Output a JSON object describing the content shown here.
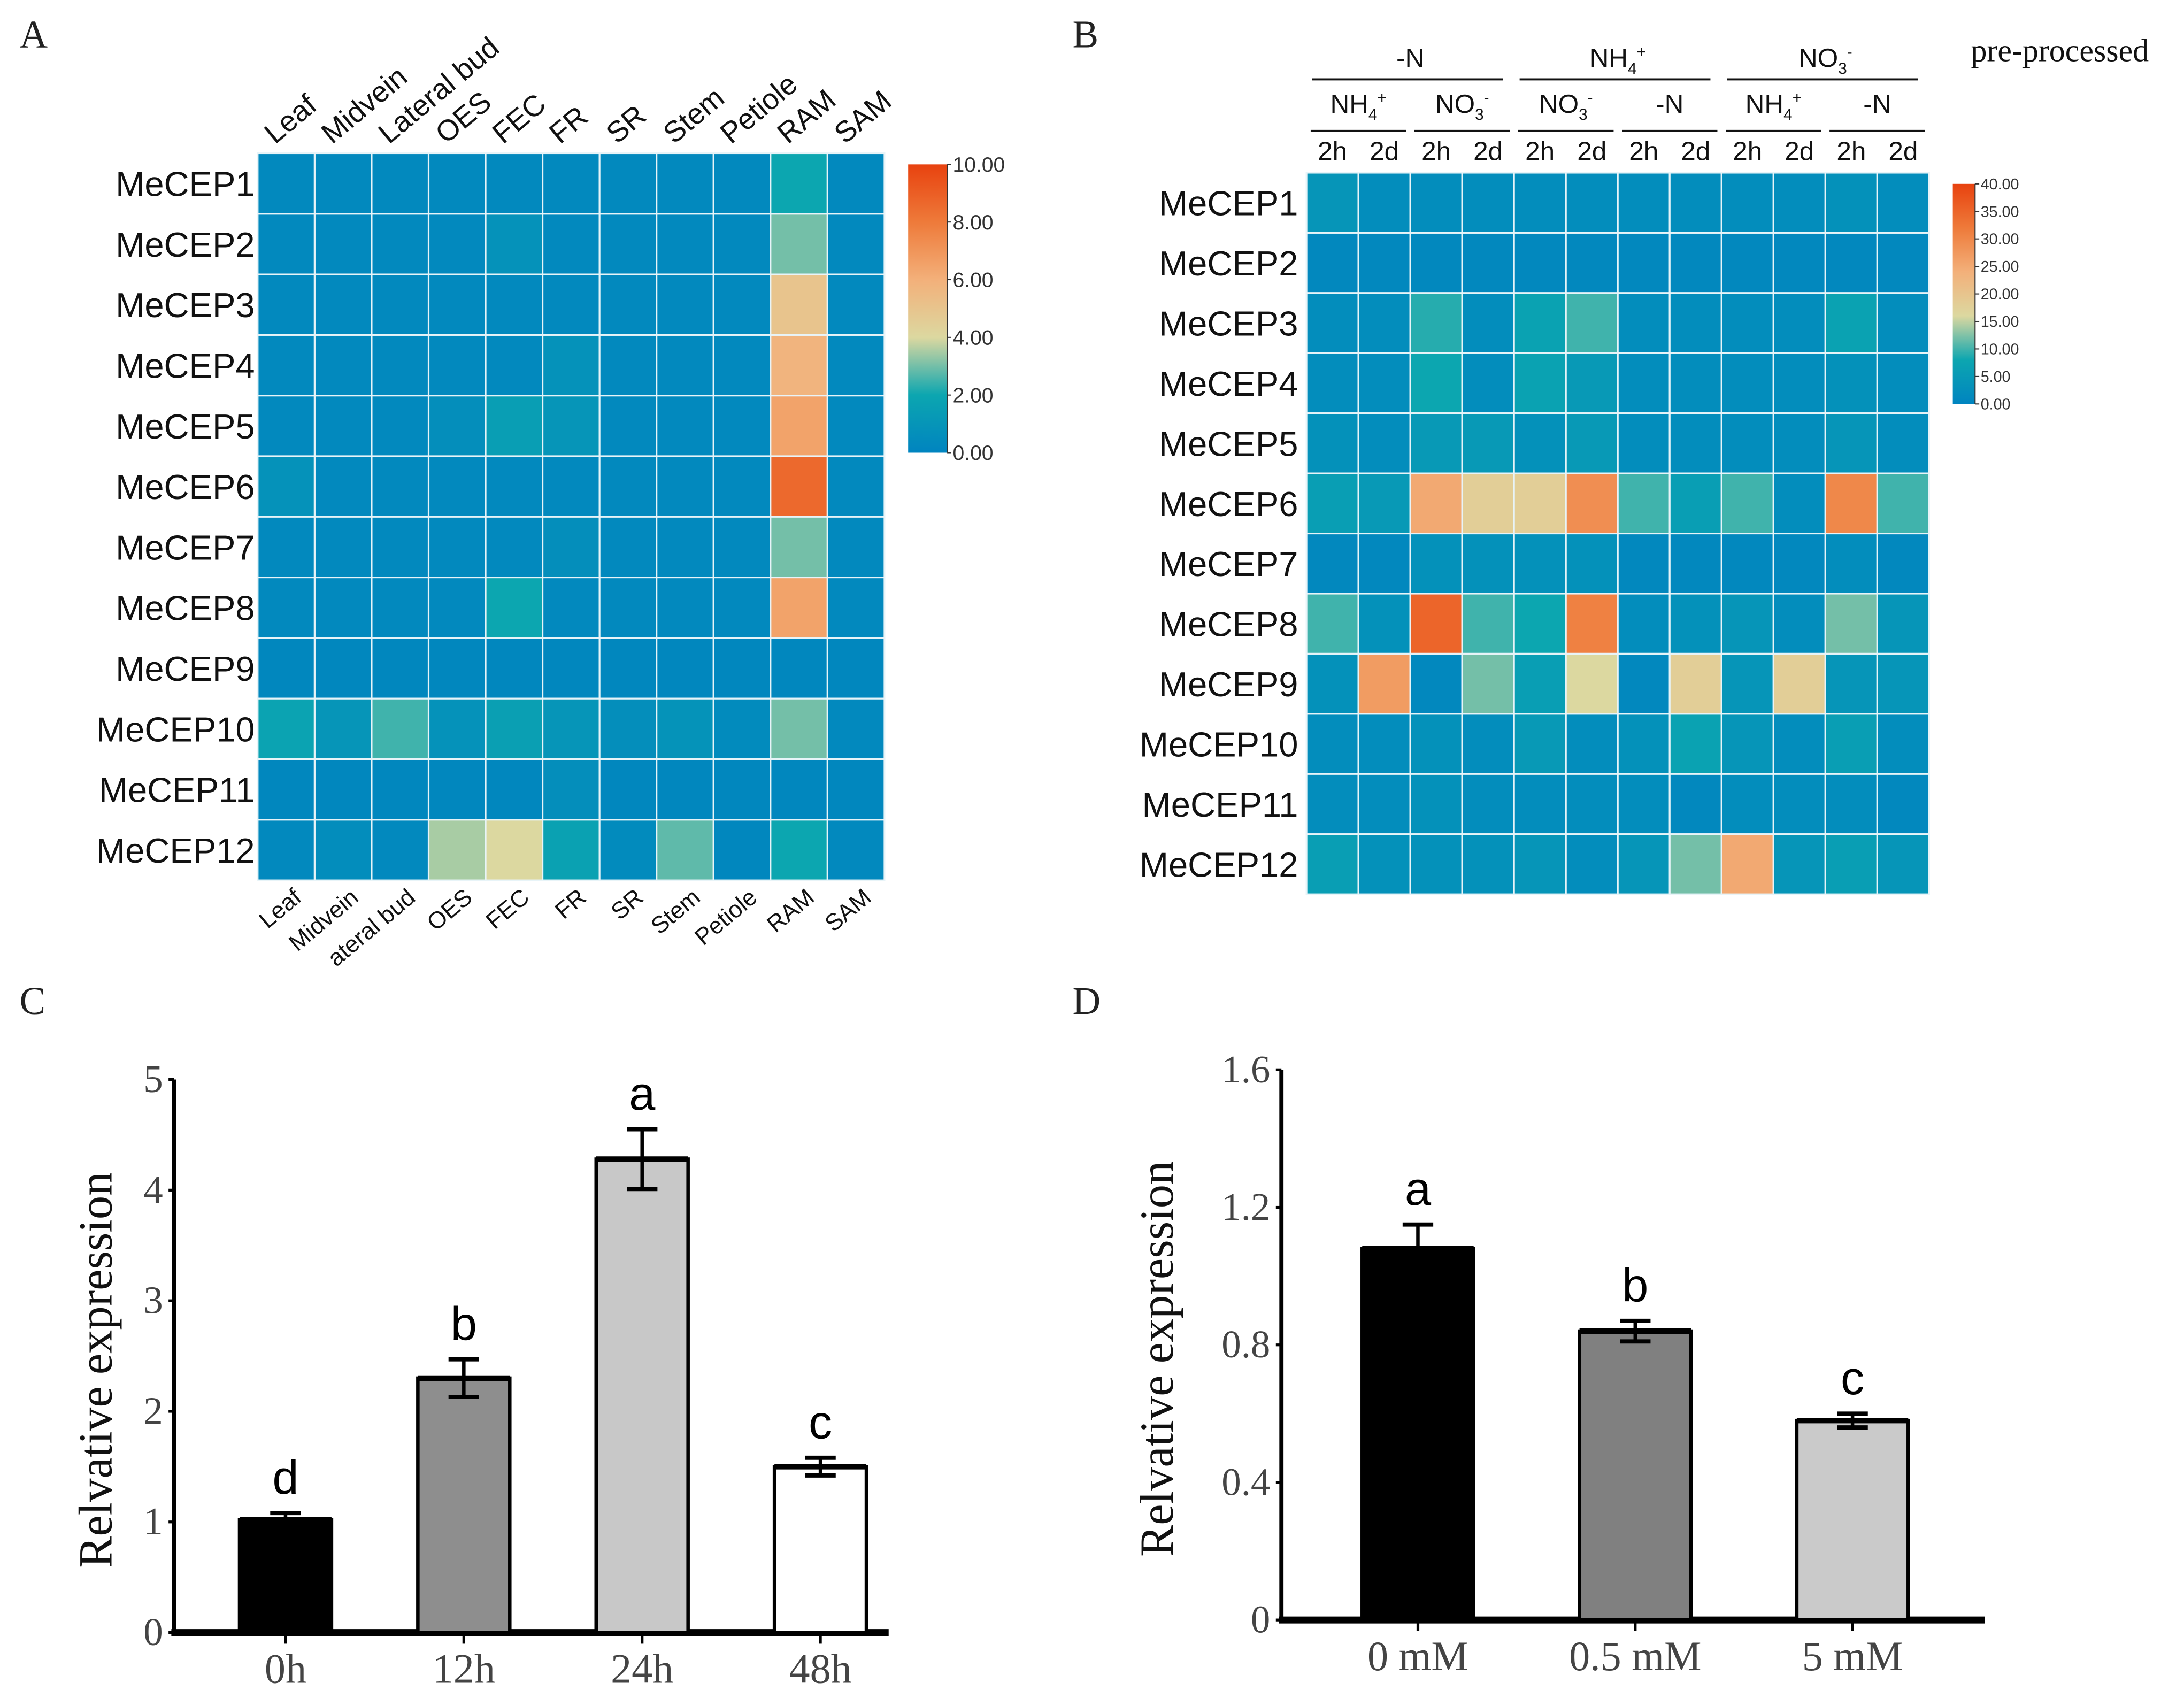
{
  "chart_data": [
    {
      "type": "heatmap",
      "panel_label": "A",
      "rows": [
        "MeCEP1",
        "MeCEP2",
        "MeCEP3",
        "MeCEP4",
        "MeCEP5",
        "MeCEP6",
        "MeCEP7",
        "MeCEP8",
        "MeCEP9",
        "MeCEP10",
        "MeCEP11",
        "MeCEP12"
      ],
      "columns_top": [
        "Leaf",
        "Midvein",
        "Lateral bud",
        "OES",
        "FEC",
        "FR",
        "SR",
        "Stem",
        "Petiole",
        "RAM",
        "SAM"
      ],
      "columns_bottom": [
        "Leaf",
        "Midvein",
        "ateral bud",
        "OES",
        "FEC",
        "FR",
        "SR",
        "Stem",
        "Petiole",
        "RAM",
        "SAM"
      ],
      "values": [
        [
          0.3,
          0.3,
          0.3,
          0.3,
          0.3,
          0.3,
          0.3,
          0.3,
          0.3,
          2.0,
          0.3
        ],
        [
          0.3,
          0.3,
          0.3,
          0.3,
          0.8,
          0.3,
          0.3,
          0.3,
          0.3,
          3.0,
          0.3
        ],
        [
          0.3,
          0.3,
          0.3,
          0.3,
          0.3,
          0.3,
          0.3,
          0.3,
          0.3,
          5.0,
          0.3
        ],
        [
          0.3,
          0.3,
          0.3,
          0.3,
          0.3,
          0.8,
          0.3,
          0.3,
          0.3,
          5.8,
          0.3
        ],
        [
          0.3,
          0.3,
          0.3,
          0.6,
          1.5,
          1.0,
          0.3,
          0.3,
          0.3,
          6.5,
          0.3
        ],
        [
          0.8,
          0.3,
          0.3,
          0.3,
          0.3,
          0.3,
          0.3,
          0.3,
          0.3,
          8.6,
          0.3
        ],
        [
          0.3,
          0.3,
          0.3,
          0.3,
          0.3,
          0.6,
          0.3,
          0.3,
          0.3,
          3.0,
          0.3
        ],
        [
          0.3,
          0.3,
          0.3,
          0.3,
          2.0,
          0.3,
          0.3,
          0.3,
          0.3,
          6.5,
          0.3
        ],
        [
          0.2,
          0.2,
          0.2,
          0.2,
          0.2,
          0.2,
          0.2,
          0.2,
          0.2,
          0.2,
          0.2
        ],
        [
          1.8,
          1.0,
          2.5,
          0.8,
          1.6,
          1.0,
          0.6,
          0.9,
          0.4,
          3.0,
          0.3
        ],
        [
          0.2,
          0.2,
          0.2,
          0.2,
          0.2,
          0.6,
          0.2,
          0.2,
          0.2,
          0.2,
          0.2
        ],
        [
          0.3,
          0.5,
          0.3,
          3.5,
          4.0,
          1.7,
          0.4,
          2.8,
          0.2,
          2.0,
          0.3
        ]
      ],
      "colorbar": {
        "min": 0,
        "max": 10,
        "ticks": [
          "0.00",
          "2.00",
          "4.00",
          "6.00",
          "8.00",
          "10.00"
        ]
      }
    },
    {
      "type": "heatmap",
      "panel_label": "B",
      "note": "pre-processed",
      "rows": [
        "MeCEP1",
        "MeCEP2",
        "MeCEP3",
        "MeCEP4",
        "MeCEP5",
        "MeCEP6",
        "MeCEP7",
        "MeCEP8",
        "MeCEP9",
        "MeCEP10",
        "MeCEP11",
        "MeCEP12"
      ],
      "groups": [
        {
          "label": "-N",
          "sup": "",
          "sub": "",
          "subgroups": [
            {
              "label": "NH",
              "sub": "4",
              "sup": "+"
            },
            {
              "label": "NO",
              "sub": "3",
              "sup": "-"
            }
          ]
        },
        {
          "label": "NH",
          "sub": "4",
          "sup": "+",
          "subgroups": [
            {
              "label": "NO",
              "sub": "3",
              "sup": "-"
            },
            {
              "label": "-N",
              "sub": "",
              "sup": ""
            }
          ]
        },
        {
          "label": "NO",
          "sub": "3",
          "sup": "-",
          "subgroups": [
            {
              "label": "NH",
              "sub": "4",
              "sup": "+"
            },
            {
              "label": "-N",
              "sub": "",
              "sup": ""
            }
          ]
        }
      ],
      "time_labels": [
        "2h",
        "2d",
        "2h",
        "2d",
        "2h",
        "2d",
        "2h",
        "2d",
        "2h",
        "2d",
        "2h",
        "2d"
      ],
      "values": [
        [
          4,
          2,
          2,
          2,
          2,
          2,
          2,
          2,
          2,
          2,
          3,
          2
        ],
        [
          1,
          1,
          1,
          1,
          1,
          1,
          1,
          1,
          1,
          1,
          1,
          1
        ],
        [
          2,
          2,
          9,
          2,
          7,
          10,
          2,
          2,
          2,
          2,
          7,
          2
        ],
        [
          2,
          2,
          8,
          2,
          7,
          5,
          2,
          2,
          2,
          2,
          3,
          2
        ],
        [
          3,
          2,
          5,
          5,
          3,
          5,
          2,
          2,
          2,
          2,
          4,
          2
        ],
        [
          6,
          5,
          25,
          18,
          18,
          29,
          10,
          6,
          10,
          2,
          30,
          10
        ],
        [
          1,
          1,
          3,
          3,
          3,
          3,
          1,
          1,
          1,
          1,
          2,
          1
        ],
        [
          10,
          3,
          35,
          10,
          8,
          31,
          2,
          3,
          4,
          2,
          12,
          4
        ],
        [
          3,
          27,
          1,
          12,
          6,
          16,
          1,
          18,
          4,
          18,
          4,
          4
        ],
        [
          2,
          2,
          3,
          2,
          5,
          2,
          3,
          7,
          4,
          2,
          6,
          2
        ],
        [
          2,
          2,
          3,
          2,
          2,
          2,
          2,
          1,
          2,
          2,
          2,
          1
        ],
        [
          6,
          3,
          3,
          3,
          4,
          2,
          4,
          12,
          25,
          4,
          6,
          4
        ]
      ],
      "colorbar": {
        "min": 0,
        "max": 40,
        "ticks": [
          "0.00",
          "5.00",
          "10.00",
          "15.00",
          "20.00",
          "25.00",
          "30.00",
          "35.00",
          "40.00"
        ]
      }
    },
    {
      "type": "bar",
      "panel_label": "C",
      "categories": [
        "0h",
        "12h",
        "24h",
        "48h"
      ],
      "values": [
        1.02,
        2.3,
        4.28,
        1.5
      ],
      "errors": [
        0.06,
        0.17,
        0.27,
        0.08
      ],
      "letters": [
        "d",
        "b",
        "a",
        "c"
      ],
      "colors": [
        "#000000",
        "#8e8e8e",
        "#c8c8c8",
        "#ffffff"
      ],
      "ylabel": "Relvative expression",
      "ylim": [
        0,
        5
      ],
      "yticks": [
        "0",
        "1",
        "2",
        "3",
        "4",
        "5"
      ]
    },
    {
      "type": "bar",
      "panel_label": "D",
      "categories": [
        "0 mM",
        "0.5 mM",
        "5 mM"
      ],
      "values": [
        1.08,
        0.84,
        0.58
      ],
      "errors": [
        0.07,
        0.03,
        0.02
      ],
      "letters": [
        "a",
        "b",
        "c"
      ],
      "colors": [
        "#000000",
        "#808080",
        "#cacaca"
      ],
      "ylabel": "Relvative expression",
      "ylim": [
        0,
        1.6
      ],
      "yticks": [
        "0",
        "0.4",
        "0.8",
        "1.2",
        "1.6"
      ]
    }
  ]
}
